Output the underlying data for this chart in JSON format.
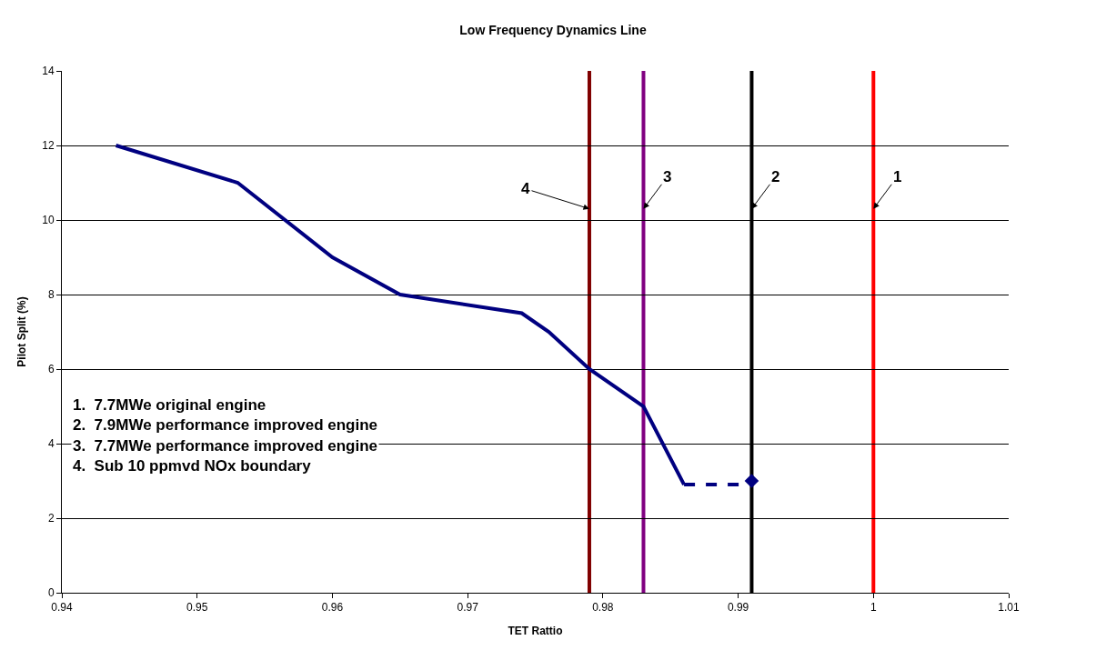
{
  "chart_data": {
    "type": "line",
    "title": "Low Frequency Dynamics Line",
    "xlabel": "TET Rattio",
    "ylabel": "Pilot Split (%)",
    "xlim": [
      0.94,
      1.01
    ],
    "xticks": [
      0.94,
      0.95,
      0.96,
      0.97,
      0.98,
      0.99,
      1,
      1.01
    ],
    "ylim": [
      0,
      14
    ],
    "yticks": [
      0,
      2,
      4,
      6,
      8,
      10,
      12,
      14
    ],
    "grid": "y",
    "series": [
      {
        "color": "#000080",
        "x": [
          0.944,
          0.953,
          0.96,
          0.965,
          0.974,
          0.976,
          0.979,
          0.983,
          0.986
        ],
        "values": [
          12,
          11,
          9,
          8,
          7.5,
          7,
          6,
          5,
          2.9
        ],
        "line_style": "solid",
        "marker": "none"
      },
      {
        "color": "#000080",
        "x": [
          0.986,
          0.991
        ],
        "values": [
          2.9,
          2.9
        ],
        "line_style": "dashed",
        "marker": "none"
      },
      {
        "type": "scatter",
        "color": "#000080",
        "x": [
          0.991
        ],
        "values": [
          3
        ],
        "marker": "diamond"
      }
    ],
    "ref_lines": [
      {
        "axis": "x",
        "value": 0.979,
        "color": "#800000"
      },
      {
        "axis": "x",
        "value": 0.983,
        "color": "#800080"
      },
      {
        "axis": "x",
        "value": 0.991,
        "color": "#000000"
      },
      {
        "axis": "x",
        "value": 1,
        "color": "#ff0000"
      }
    ],
    "annotations": [
      {
        "text": "4",
        "x": 0.979,
        "y": 10.3
      },
      {
        "text": "3",
        "x": 0.983,
        "y": 10.3
      },
      {
        "text": "2",
        "x": 0.991,
        "y": 10.3
      },
      {
        "text": "1",
        "x": 1,
        "y": 10.3
      },
      "1.  7.7MWe original engine",
      "2.  7.9MWe performance improved engine",
      "3.  7.7MWe performance improved engine",
      "4.  Sub 10 ppmvd NOx boundary"
    ]
  }
}
